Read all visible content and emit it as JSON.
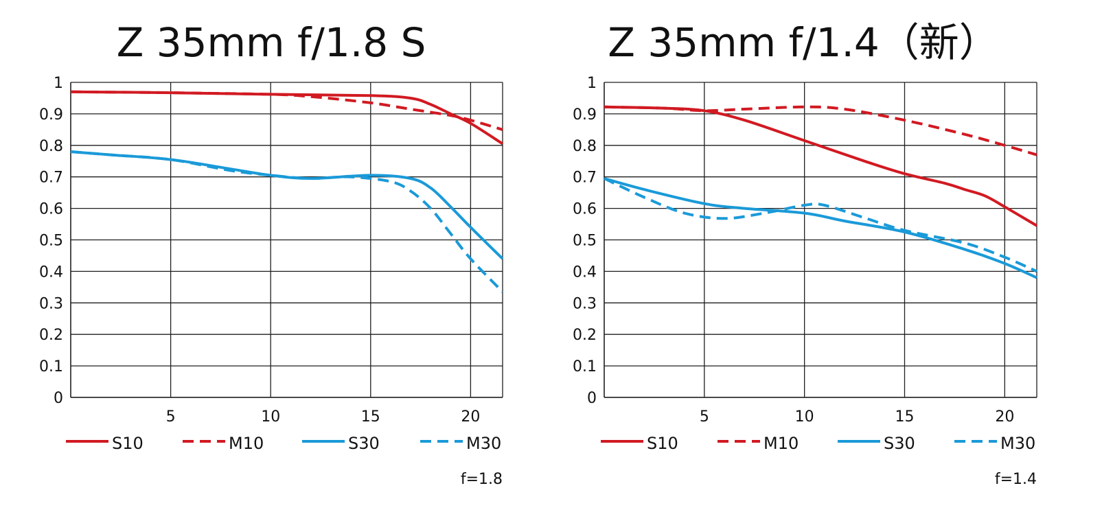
{
  "colors": {
    "red": "#d11a22",
    "blue": "#1a9ad8",
    "grid": "#1e1e1e"
  },
  "chart_data": [
    {
      "type": "line",
      "title": "Z 35mm f/1.8 S",
      "aperture_label": "f=1.8",
      "xlim": [
        0,
        21.6
      ],
      "ylim": [
        0,
        1
      ],
      "x_ticks": [
        5,
        10,
        15,
        20
      ],
      "y_ticks": [
        0,
        0.1,
        0.2,
        0.3,
        0.4,
        0.5,
        0.6,
        0.7,
        0.8,
        0.9,
        1
      ],
      "y_tick_labels": [
        "0",
        "0.1",
        "0.2",
        "0.3",
        "0.4",
        "0.5",
        "0.6",
        "0.7",
        "0.8",
        "0.9",
        "1"
      ],
      "legend": [
        "S10",
        "M10",
        "S30",
        "M30"
      ],
      "series": [
        {
          "name": "S10",
          "color": "red",
          "dashed": false,
          "x": [
            0,
            5,
            10,
            15,
            17,
            18,
            19,
            20,
            21.6
          ],
          "y": [
            0.97,
            0.967,
            0.962,
            0.958,
            0.95,
            0.93,
            0.9,
            0.87,
            0.805
          ]
        },
        {
          "name": "M10",
          "color": "red",
          "dashed": true,
          "x": [
            0,
            5,
            10,
            12,
            15,
            17,
            19,
            20,
            21.6
          ],
          "y": [
            0.97,
            0.967,
            0.962,
            0.955,
            0.935,
            0.915,
            0.895,
            0.88,
            0.85
          ]
        },
        {
          "name": "S30",
          "color": "blue",
          "dashed": false,
          "x": [
            0,
            2,
            5,
            8,
            10,
            12,
            15,
            17,
            18,
            19,
            20,
            21.6
          ],
          "y": [
            0.78,
            0.77,
            0.755,
            0.725,
            0.705,
            0.695,
            0.705,
            0.695,
            0.665,
            0.605,
            0.54,
            0.44
          ]
        },
        {
          "name": "M30",
          "color": "blue",
          "dashed": true,
          "x": [
            0,
            2,
            5,
            8,
            10,
            12,
            14,
            16,
            17,
            18,
            19,
            20,
            21.6
          ],
          "y": [
            0.78,
            0.77,
            0.755,
            0.72,
            0.705,
            0.695,
            0.7,
            0.685,
            0.655,
            0.6,
            0.52,
            0.44,
            0.335
          ]
        }
      ]
    },
    {
      "type": "line",
      "title": "Z 35mm f/1.4（新）",
      "aperture_label": "f=1.4",
      "xlim": [
        0,
        21.6
      ],
      "ylim": [
        0,
        1
      ],
      "x_ticks": [
        5,
        10,
        15,
        20
      ],
      "y_ticks": [
        0,
        0.1,
        0.2,
        0.3,
        0.4,
        0.5,
        0.6,
        0.7,
        0.8,
        0.9,
        1
      ],
      "y_tick_labels": [
        "0",
        "0.1",
        "0.2",
        "0.3",
        "0.4",
        "0.5",
        "0.6",
        "0.7",
        "0.8",
        "0.9",
        "1"
      ],
      "legend": [
        "S10",
        "M10",
        "S30",
        "M30"
      ],
      "series": [
        {
          "name": "S10",
          "color": "red",
          "dashed": false,
          "x": [
            0,
            3,
            5,
            7,
            10,
            13,
            15,
            17,
            18,
            19,
            20,
            21.6
          ],
          "y": [
            0.922,
            0.918,
            0.91,
            0.88,
            0.815,
            0.75,
            0.71,
            0.68,
            0.66,
            0.64,
            0.605,
            0.545
          ]
        },
        {
          "name": "M10",
          "color": "red",
          "dashed": true,
          "x": [
            0,
            3,
            5,
            7,
            10,
            12,
            15,
            18,
            20,
            21.6
          ],
          "y": [
            0.922,
            0.918,
            0.91,
            0.915,
            0.922,
            0.915,
            0.88,
            0.835,
            0.8,
            0.77
          ]
        },
        {
          "name": "S30",
          "color": "blue",
          "dashed": false,
          "x": [
            0,
            2,
            5,
            7,
            10,
            12,
            15,
            18,
            20,
            21.6
          ],
          "y": [
            0.695,
            0.66,
            0.615,
            0.6,
            0.585,
            0.56,
            0.525,
            0.47,
            0.425,
            0.38
          ]
        },
        {
          "name": "M30",
          "color": "blue",
          "dashed": true,
          "x": [
            0,
            2,
            4,
            6,
            8,
            10,
            11,
            13,
            15,
            18,
            20,
            21.6
          ],
          "y": [
            0.695,
            0.635,
            0.585,
            0.568,
            0.585,
            0.61,
            0.61,
            0.57,
            0.53,
            0.49,
            0.445,
            0.4
          ]
        }
      ]
    }
  ]
}
